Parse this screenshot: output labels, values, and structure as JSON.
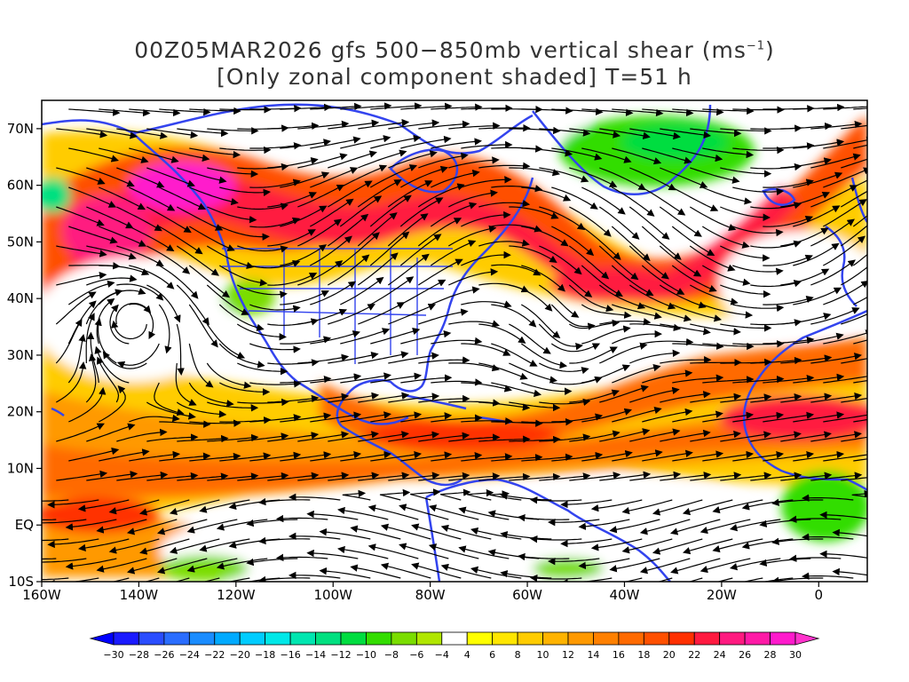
{
  "title": {
    "line1_prefix": "00Z05MAR2026 gfs 500−850mb vertical shear (ms",
    "line1_sup": "−1",
    "line1_suffix": ")",
    "line2": "[Only zonal component shaded] T=51 h"
  },
  "axes": {
    "lon_range": [
      -160,
      10
    ],
    "lat_range": [
      -10,
      75
    ],
    "x_ticks": [
      {
        "lon": -160,
        "label": "160W"
      },
      {
        "lon": -140,
        "label": "140W"
      },
      {
        "lon": -120,
        "label": "120W"
      },
      {
        "lon": -100,
        "label": "100W"
      },
      {
        "lon": -80,
        "label": "80W"
      },
      {
        "lon": -60,
        "label": "60W"
      },
      {
        "lon": -40,
        "label": "40W"
      },
      {
        "lon": -20,
        "label": "20W"
      },
      {
        "lon": 0,
        "label": "0"
      }
    ],
    "y_ticks": [
      {
        "lat": 70,
        "label": "70N"
      },
      {
        "lat": 60,
        "label": "60N"
      },
      {
        "lat": 50,
        "label": "50N"
      },
      {
        "lat": 40,
        "label": "40N"
      },
      {
        "lat": 30,
        "label": "30N"
      },
      {
        "lat": 20,
        "label": "20N"
      },
      {
        "lat": 10,
        "label": "10N"
      },
      {
        "lat": 0,
        "label": "EQ"
      },
      {
        "lat": -10,
        "label": "10S"
      }
    ]
  },
  "colorbar": {
    "labels": [
      "−30",
      "−28",
      "−26",
      "−24",
      "−22",
      "−20",
      "−18",
      "−16",
      "−14",
      "−12",
      "−10",
      "−8",
      "−6",
      "−4",
      "4",
      "6",
      "8",
      "10",
      "12",
      "14",
      "16",
      "18",
      "20",
      "22",
      "24",
      "26",
      "28",
      "30"
    ],
    "colors": [
      "#1a1aff",
      "#2a4dff",
      "#2a6dff",
      "#1a8cff",
      "#00aaff",
      "#00ccff",
      "#00e8e8",
      "#00e6b0",
      "#00e080",
      "#00dd40",
      "#33dd00",
      "#7add00",
      "#b0e600",
      "#ffffff",
      "#ffff00",
      "#ffe600",
      "#ffcc00",
      "#ffb300",
      "#ff9900",
      "#ff8000",
      "#ff6a00",
      "#ff5000",
      "#ff3000",
      "#ff1a40",
      "#ff1a80",
      "#ff1aa6",
      "#ff1acc"
    ],
    "under_color": "#0000ff",
    "over_color": "#ff33cc"
  },
  "colors": {
    "coastline": "#3344ee",
    "streamline": "#000000"
  },
  "shear_features": [
    {
      "name": "subtropical-jet-shear",
      "value_ms": 22
    },
    {
      "name": "north-atlantic-jet-shear",
      "value_ms": 24
    },
    {
      "name": "ne-pacific-core",
      "value_ms": 30
    },
    {
      "name": "greenland-easterly-shear",
      "value_ms": -12
    }
  ]
}
